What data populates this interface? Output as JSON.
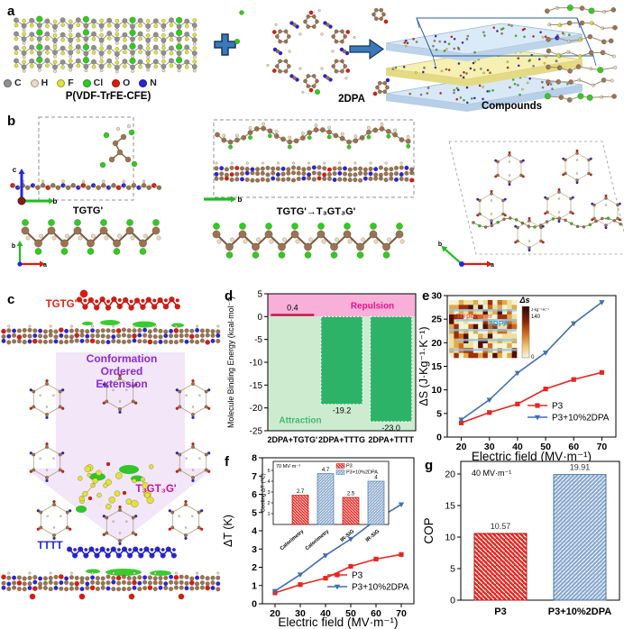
{
  "figure": {
    "panel_labels": {
      "a": "a",
      "b": "b",
      "c": "c",
      "d": "d",
      "e": "e",
      "f": "f",
      "g": "g"
    }
  },
  "panel_a": {
    "legend": [
      {
        "symbol": "C",
        "color": "#8f8f8f"
      },
      {
        "symbol": "H",
        "color": "#eadcc3"
      },
      {
        "symbol": "F",
        "color": "#dde23c"
      },
      {
        "symbol": "Cl",
        "color": "#2ecc1e"
      },
      {
        "symbol": "O",
        "color": "#dd1a10"
      },
      {
        "symbol": "N",
        "color": "#2823e0"
      }
    ],
    "left_label": "P(VDF-TrFE-CFE)",
    "middle_label": "2DPA",
    "right_label": "Compounds"
  },
  "panel_b": {
    "left_conformation": "TGTG'",
    "middle_conformation": "TGTG'→T₃GT₃G'",
    "axes": {
      "a": "a",
      "b": "b",
      "c": "c"
    }
  },
  "panel_c": {
    "top_label": "TGTG'",
    "arrow_text": [
      "Conformation",
      "Ordered",
      "Extension"
    ],
    "middle_label": "T₃GT₃G'",
    "bottom_label": "TTTT"
  },
  "chart_data": [
    {
      "id": "d",
      "type": "bar",
      "ylabel": "Molecule Binding Energy (kcal·mol⁻¹)",
      "categories": [
        "2DPA+TGTG'",
        "2DPA+TTTG",
        "2DPA+TTTT"
      ],
      "values": [
        0.4,
        -19.2,
        -23.0
      ],
      "value_labels": [
        "0.4",
        "-19.2",
        "-23.0"
      ],
      "ylim": [
        -25,
        5
      ],
      "yticks": [
        5,
        0,
        -5,
        -10,
        -15,
        -20,
        -25
      ],
      "region_labels": {
        "positive": "Repulsion",
        "negative": "Attraction"
      },
      "colors": {
        "positive_bar": "#c11240",
        "negative_bar": "#2db368",
        "positive_bg": "#f8b0d8",
        "negative_bg": "#cdeccf",
        "positive_text": "#e8148c",
        "negative_text": "#43b876"
      }
    },
    {
      "id": "e",
      "type": "line",
      "xlabel": "Electric field (MV·m⁻¹)",
      "ylabel": "ΔS (J·Kg⁻¹·K⁻¹)",
      "x": [
        20,
        30,
        40,
        50,
        60,
        70
      ],
      "xticks": [
        20,
        30,
        40,
        50,
        60,
        70
      ],
      "yticks": [
        0,
        5,
        10,
        15,
        20,
        25,
        30
      ],
      "ylim": [
        0,
        30
      ],
      "xlim": [
        15,
        75
      ],
      "series": [
        {
          "name": "P3",
          "marker": "square",
          "color": "#e8251f",
          "values": [
            3.0,
            5.2,
            7.0,
            10.2,
            12.2,
            13.7
          ]
        },
        {
          "name": "P3+10%2DPA",
          "marker": "triangle",
          "color": "#3f6fae",
          "values": [
            3.7,
            7.9,
            13.6,
            17.9,
            24.1,
            28.6
          ]
        }
      ],
      "inset_heatmap": {
        "title": "Δs",
        "colorbar_unit": "J·kg⁻¹·K⁻¹",
        "colorbar_max": "140",
        "colorbar_min": "0",
        "overlay_red": "Terpolymer",
        "overlay_blue": "2DPA"
      }
    },
    {
      "id": "f",
      "type": "line",
      "xlabel": "Electric field (MV·m⁻¹)",
      "ylabel": "ΔT (K)",
      "x": [
        20,
        30,
        40,
        50,
        60,
        70
      ],
      "xticks": [
        20,
        30,
        40,
        50,
        60,
        70
      ],
      "yticks": [
        0,
        1,
        2,
        3,
        4,
        5,
        6,
        7,
        8
      ],
      "ylim": [
        0,
        8
      ],
      "xlim": [
        15,
        75
      ],
      "series": [
        {
          "name": "P3",
          "marker": "square",
          "color": "#e8251f",
          "values": [
            0.6,
            1.05,
            1.4,
            2.05,
            2.45,
            2.7
          ]
        },
        {
          "name": "P3+10%2DPA",
          "marker": "triangle",
          "color": "#3f6fae",
          "values": [
            0.7,
            1.6,
            2.65,
            3.55,
            4.6,
            5.45
          ]
        }
      ],
      "inset_bar": {
        "ylabel": "Cooling ΔT (℃)",
        "annotation": "70 MV·m⁻¹",
        "legend": [
          {
            "label": "P3",
            "color": "#e8251f"
          },
          {
            "label": "P3+10%2DPA",
            "color": "#88a8cc"
          }
        ],
        "categories": [
          "Calorimetry",
          "Calorimetry",
          "IR-SiG",
          "IR-SiG"
        ],
        "values": [
          2.7,
          4.7,
          2.5,
          4
        ],
        "value_labels": [
          "2.7",
          "4.7",
          "2.5",
          "4"
        ],
        "bar_colors": [
          "#e8251f",
          "#88a8cc",
          "#e8251f",
          "#88a8cc"
        ],
        "yticks": [
          1,
          2,
          3,
          4,
          5
        ],
        "ylim": [
          0,
          5.5
        ]
      }
    },
    {
      "id": "g",
      "type": "bar",
      "ylabel": "COP",
      "annotation": "40 MV·m⁻¹",
      "categories": [
        "P3",
        "P3+10%2DPA"
      ],
      "values": [
        10.57,
        19.91
      ],
      "value_labels": [
        "10.57",
        "19.91"
      ],
      "bar_colors": [
        "#e8251f",
        "#88a8cc"
      ],
      "ylim": [
        0,
        22
      ],
      "yticks": [
        0,
        5,
        10,
        15,
        20
      ]
    }
  ]
}
